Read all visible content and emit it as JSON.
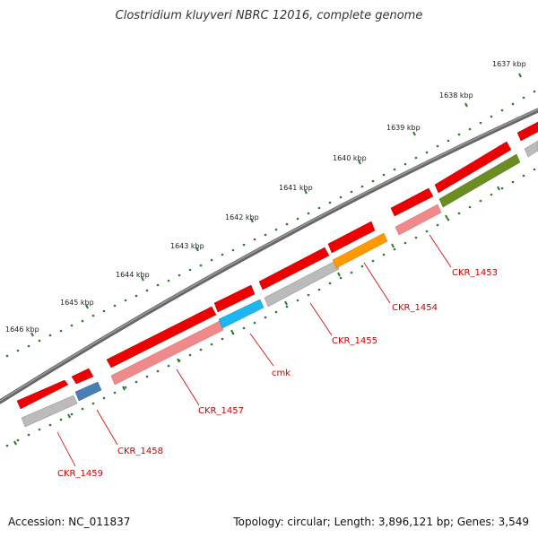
{
  "title": "Clostridium kluyveri NBRC 12016, complete genome",
  "accession": "Accession: NC_011837",
  "summary": "Topology: circular; Length: 3,896,121 bp; Genes: 3,549",
  "ruler_labels": [
    "1637 kbp",
    "1638 kbp",
    "1639 kbp",
    "1640 kbp",
    "1641 kbp",
    "1642 kbp",
    "1643 kbp",
    "1644 kbp",
    "1645 kbp",
    "1646 kbp"
  ],
  "gene_labels": [
    "CKR_1453",
    "CKR_1454",
    "CKR_1455",
    "cmk",
    "CKR_1457",
    "CKR_1458",
    "CKR_1459"
  ],
  "colors": {
    "backbone": "#777777",
    "cds_forward": "#ee0000",
    "ruler": "#2e7d2e",
    "label": "#cc0000",
    "gene_CKR_1453": "#f08a8a",
    "gene_CKR_1454": "#ff9900",
    "gene_CKR_1455": "#bbbbbb",
    "gene_cmk": "#1cb6f0",
    "gene_CKR_1457": "#f08a8a",
    "gene_CKR_1458": "#4a7fb5",
    "gene_CKR_1459": "#bbbbbb",
    "gene_next": "#6b8e23"
  }
}
